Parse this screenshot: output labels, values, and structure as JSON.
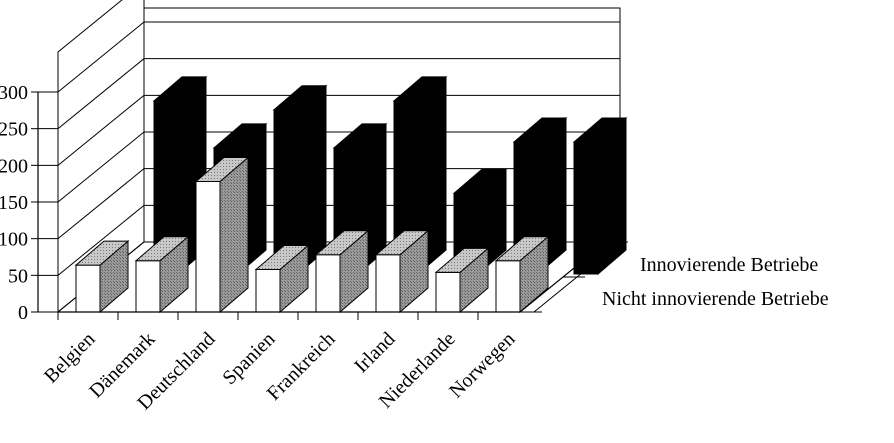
{
  "chart_data": {
    "type": "bar",
    "subtype": "3d-depth-bar",
    "categories": [
      "Belgien",
      "Dänemark",
      "Deutschland",
      "Spanien",
      "Frankreich",
      "Irland",
      "Niederlande",
      "Norwegen"
    ],
    "series": [
      {
        "name": "Innovierende Betriebe",
        "values": [
          236,
          172,
          224,
          172,
          236,
          110,
          180,
          180
        ],
        "color": "#000000"
      },
      {
        "name": "Nicht innovierende Betriebe",
        "values": [
          64,
          70,
          178,
          58,
          78,
          78,
          54,
          70
        ],
        "color": "#ffffff"
      }
    ],
    "yticks": [
      0,
      50,
      100,
      150,
      200,
      250,
      300
    ],
    "ylim": [
      0,
      300
    ],
    "legend_position": "right",
    "grid": true
  }
}
